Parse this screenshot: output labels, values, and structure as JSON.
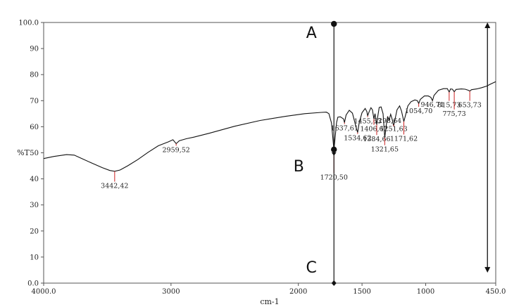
{
  "chart_data": {
    "type": "line",
    "xlabel": "cm-1",
    "ylabel": "%T",
    "xlim": [
      4000,
      450
    ],
    "ylim": [
      0,
      100
    ],
    "x_ticks": [
      {
        "value": 4000,
        "label": "4000.0"
      },
      {
        "value": 3000,
        "label": "3000"
      },
      {
        "value": 2000,
        "label": "2000"
      },
      {
        "value": 1500,
        "label": "1500"
      },
      {
        "value": 1000,
        "label": "1000"
      },
      {
        "value": 450,
        "label": "450.0"
      }
    ],
    "y_ticks": [
      {
        "value": 0,
        "label": "0.0"
      },
      {
        "value": 10,
        "label": "10"
      },
      {
        "value": 20,
        "label": "20"
      },
      {
        "value": 30,
        "label": "30"
      },
      {
        "value": 40,
        "label": "40"
      },
      {
        "value": 50,
        "label": "50"
      },
      {
        "value": 60,
        "label": "60"
      },
      {
        "value": 70,
        "label": "70"
      },
      {
        "value": 80,
        "label": "80"
      },
      {
        "value": 90,
        "label": "90"
      },
      {
        "value": 100,
        "label": "100.0"
      }
    ],
    "series": [
      {
        "color": "#111111",
        "points": [
          [
            4000,
            47.8
          ],
          [
            3920,
            48.6
          ],
          [
            3820,
            49.3
          ],
          [
            3760,
            49.1
          ],
          [
            3700,
            47.8
          ],
          [
            3620,
            46.0
          ],
          [
            3540,
            44.3
          ],
          [
            3480,
            43.2
          ],
          [
            3442,
            42.9
          ],
          [
            3400,
            43.4
          ],
          [
            3340,
            45.0
          ],
          [
            3260,
            47.4
          ],
          [
            3180,
            50.2
          ],
          [
            3100,
            52.7
          ],
          [
            3020,
            54.2
          ],
          [
            2985,
            55.0
          ],
          [
            2959.5,
            53.5
          ],
          [
            2935,
            54.6
          ],
          [
            2880,
            55.4
          ],
          [
            2820,
            56.0
          ],
          [
            2700,
            57.5
          ],
          [
            2500,
            60.2
          ],
          [
            2300,
            62.4
          ],
          [
            2100,
            64.0
          ],
          [
            1950,
            65.0
          ],
          [
            1820,
            65.5
          ],
          [
            1780,
            65.6
          ],
          [
            1760,
            65.0
          ],
          [
            1740,
            61.5
          ],
          [
            1728,
            55.0
          ],
          [
            1720.5,
            51.0
          ],
          [
            1712,
            55.5
          ],
          [
            1700,
            61.5
          ],
          [
            1690,
            63.7
          ],
          [
            1670,
            63.8
          ],
          [
            1645,
            63.0
          ],
          [
            1637.6,
            61.6
          ],
          [
            1625,
            64.5
          ],
          [
            1600,
            66.3
          ],
          [
            1575,
            65.2
          ],
          [
            1545,
            59.5
          ],
          [
            1534.6,
            57.8
          ],
          [
            1522,
            61.5
          ],
          [
            1500,
            65.4
          ],
          [
            1475,
            67.0
          ],
          [
            1462,
            65.8
          ],
          [
            1455.6,
            64.2
          ],
          [
            1445,
            65.7
          ],
          [
            1430,
            67.3
          ],
          [
            1418,
            66.5
          ],
          [
            1406.7,
            63.0
          ],
          [
            1398,
            65.0
          ],
          [
            1390,
            62.5
          ],
          [
            1384.7,
            60.8
          ],
          [
            1378,
            63.5
          ],
          [
            1365,
            67.4
          ],
          [
            1350,
            67.6
          ],
          [
            1335,
            65.0
          ],
          [
            1321.7,
            55.8
          ],
          [
            1310,
            60.5
          ],
          [
            1298.6,
            64.0
          ],
          [
            1288,
            62.5
          ],
          [
            1275,
            64.8
          ],
          [
            1262,
            62.6
          ],
          [
            1251.6,
            60.2
          ],
          [
            1240,
            63.0
          ],
          [
            1225,
            66.5
          ],
          [
            1205,
            68.0
          ],
          [
            1190,
            66.0
          ],
          [
            1171.6,
            62.0
          ],
          [
            1158,
            64.5
          ],
          [
            1140,
            68.0
          ],
          [
            1115,
            69.6
          ],
          [
            1085,
            70.3
          ],
          [
            1065,
            70.0
          ],
          [
            1054.7,
            68.9
          ],
          [
            1042,
            70.5
          ],
          [
            1010,
            71.8
          ],
          [
            980,
            71.8
          ],
          [
            960,
            71.3
          ],
          [
            946.7,
            70.0
          ],
          [
            935,
            72.0
          ],
          [
            900,
            74.0
          ],
          [
            860,
            74.6
          ],
          [
            830,
            74.6
          ],
          [
            815.7,
            73.3
          ],
          [
            805,
            74.5
          ],
          [
            790,
            74.4
          ],
          [
            775.7,
            73.4
          ],
          [
            762,
            74.3
          ],
          [
            720,
            74.5
          ],
          [
            690,
            74.4
          ],
          [
            665,
            74.0
          ],
          [
            653.7,
            73.7
          ],
          [
            640,
            74.2
          ],
          [
            600,
            74.5
          ],
          [
            560,
            75.0
          ],
          [
            520,
            75.6
          ],
          [
            490,
            76.4
          ],
          [
            450,
            77.3
          ]
        ]
      }
    ],
    "peaks": [
      {
        "wavenumber": 3442.42,
        "transmittance": 42.9,
        "label": "3442,42",
        "label_y": 36.5
      },
      {
        "wavenumber": 2959.52,
        "transmittance": 53.5,
        "label": "2959,52",
        "label_y": 50.3
      },
      {
        "wavenumber": 1720.5,
        "transmittance": 51.0,
        "label": "1720,50",
        "label_y": 39.8
      },
      {
        "wavenumber": 1637.61,
        "transmittance": 61.6,
        "label": "1637,61",
        "label_y": 58.6
      },
      {
        "wavenumber": 1534.62,
        "transmittance": 57.8,
        "label": "1534,62",
        "label_y": 54.8
      },
      {
        "wavenumber": 1455.63,
        "transmittance": 64.2,
        "label": "1455,63",
        "label_y": 61.3
      },
      {
        "wavenumber": 1406.67,
        "transmittance": 63.0,
        "label": "1406,67",
        "label_y": 58.3
      },
      {
        "wavenumber": 1384.66,
        "transmittance": 60.8,
        "label": "1384,66",
        "label_y": 54.4
      },
      {
        "wavenumber": 1321.65,
        "transmittance": 55.8,
        "label": "1321,65",
        "label_y": 50.5
      },
      {
        "wavenumber": 1298.64,
        "transmittance": 64.0,
        "label": "1298,64",
        "label_y": 61.5
      },
      {
        "wavenumber": 1251.63,
        "transmittance": 60.2,
        "label": "1251,63",
        "label_y": 58.4
      },
      {
        "wavenumber": 1171.62,
        "transmittance": 62.0,
        "label": "1171,62",
        "label_y": 54.6
      },
      {
        "wavenumber": 1054.7,
        "transmittance": 68.9,
        "label": "1054,70",
        "label_y": 65.2
      },
      {
        "wavenumber": 946.71,
        "transmittance": 70.0,
        "label": "946,71",
        "label_y": 67.6
      },
      {
        "wavenumber": 815.73,
        "transmittance": 73.3,
        "label": "815,73",
        "label_y": 67.5
      },
      {
        "wavenumber": 775.73,
        "transmittance": 73.4,
        "label": "775,73",
        "label_y": 64.2
      },
      {
        "wavenumber": 653.73,
        "transmittance": 73.7,
        "label": "653,73",
        "label_y": 67.5
      }
    ],
    "peak_marker_color": "#cc2222",
    "annotations": {
      "markers": [
        {
          "label": "A",
          "wavenumber": 1720.5,
          "transmittance": 100
        },
        {
          "label": "B",
          "wavenumber": 1720.5,
          "transmittance": 51
        },
        {
          "label": "C",
          "wavenumber": 1720.5,
          "transmittance": 0
        }
      ],
      "range_arrow": {
        "wavenumber": 515,
        "from": 100,
        "to": 4
      }
    },
    "grid": false,
    "legend": "none"
  }
}
